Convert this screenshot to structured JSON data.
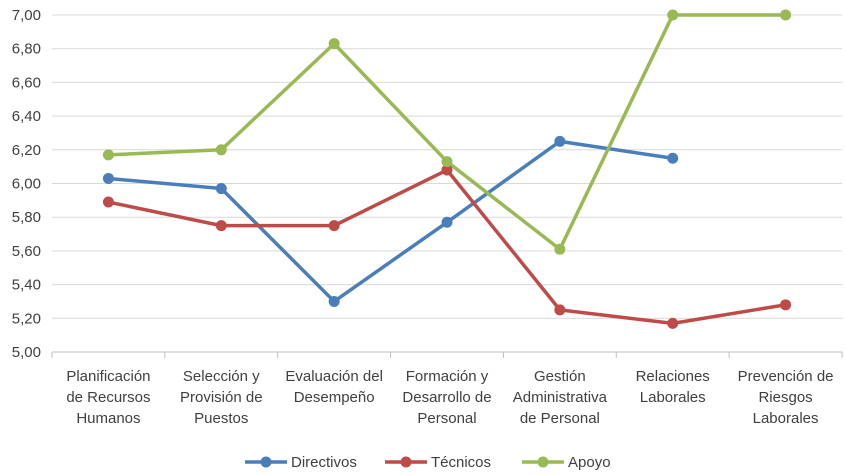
{
  "chart_data": {
    "type": "line",
    "title": "",
    "xlabel": "",
    "ylabel": "",
    "categories": [
      [
        "Planificación",
        "de Recursos",
        "Humanos"
      ],
      [
        "Selección y",
        "Provisión de",
        "Puestos"
      ],
      [
        "Evaluación del",
        "Desempeño"
      ],
      [
        "Formación y",
        "Desarrollo de",
        "Personal"
      ],
      [
        "Gestión",
        "Administrativa",
        "de Personal"
      ],
      [
        "Relaciones",
        "Laborales"
      ],
      [
        "Prevención de",
        "Riesgos",
        "Laborales"
      ]
    ],
    "ylim": [
      5.0,
      7.0
    ],
    "yticks": [
      "5,00",
      "5,20",
      "5,40",
      "5,60",
      "5,80",
      "6,00",
      "6,20",
      "6,40",
      "6,60",
      "6,80",
      "7,00"
    ],
    "grid": true,
    "legend": "bottom",
    "series": [
      {
        "name": "Directivos",
        "color": "#4a7ebb",
        "values": [
          6.03,
          5.97,
          5.3,
          5.77,
          6.25,
          6.15,
          null
        ]
      },
      {
        "name": "Técnicos",
        "color": "#be4b48",
        "values": [
          5.89,
          5.75,
          5.75,
          6.08,
          5.25,
          5.17,
          5.28
        ]
      },
      {
        "name": "Apoyo",
        "color": "#98b954",
        "values": [
          6.17,
          6.2,
          6.83,
          6.13,
          5.61,
          7.0,
          7.0
        ]
      }
    ]
  }
}
